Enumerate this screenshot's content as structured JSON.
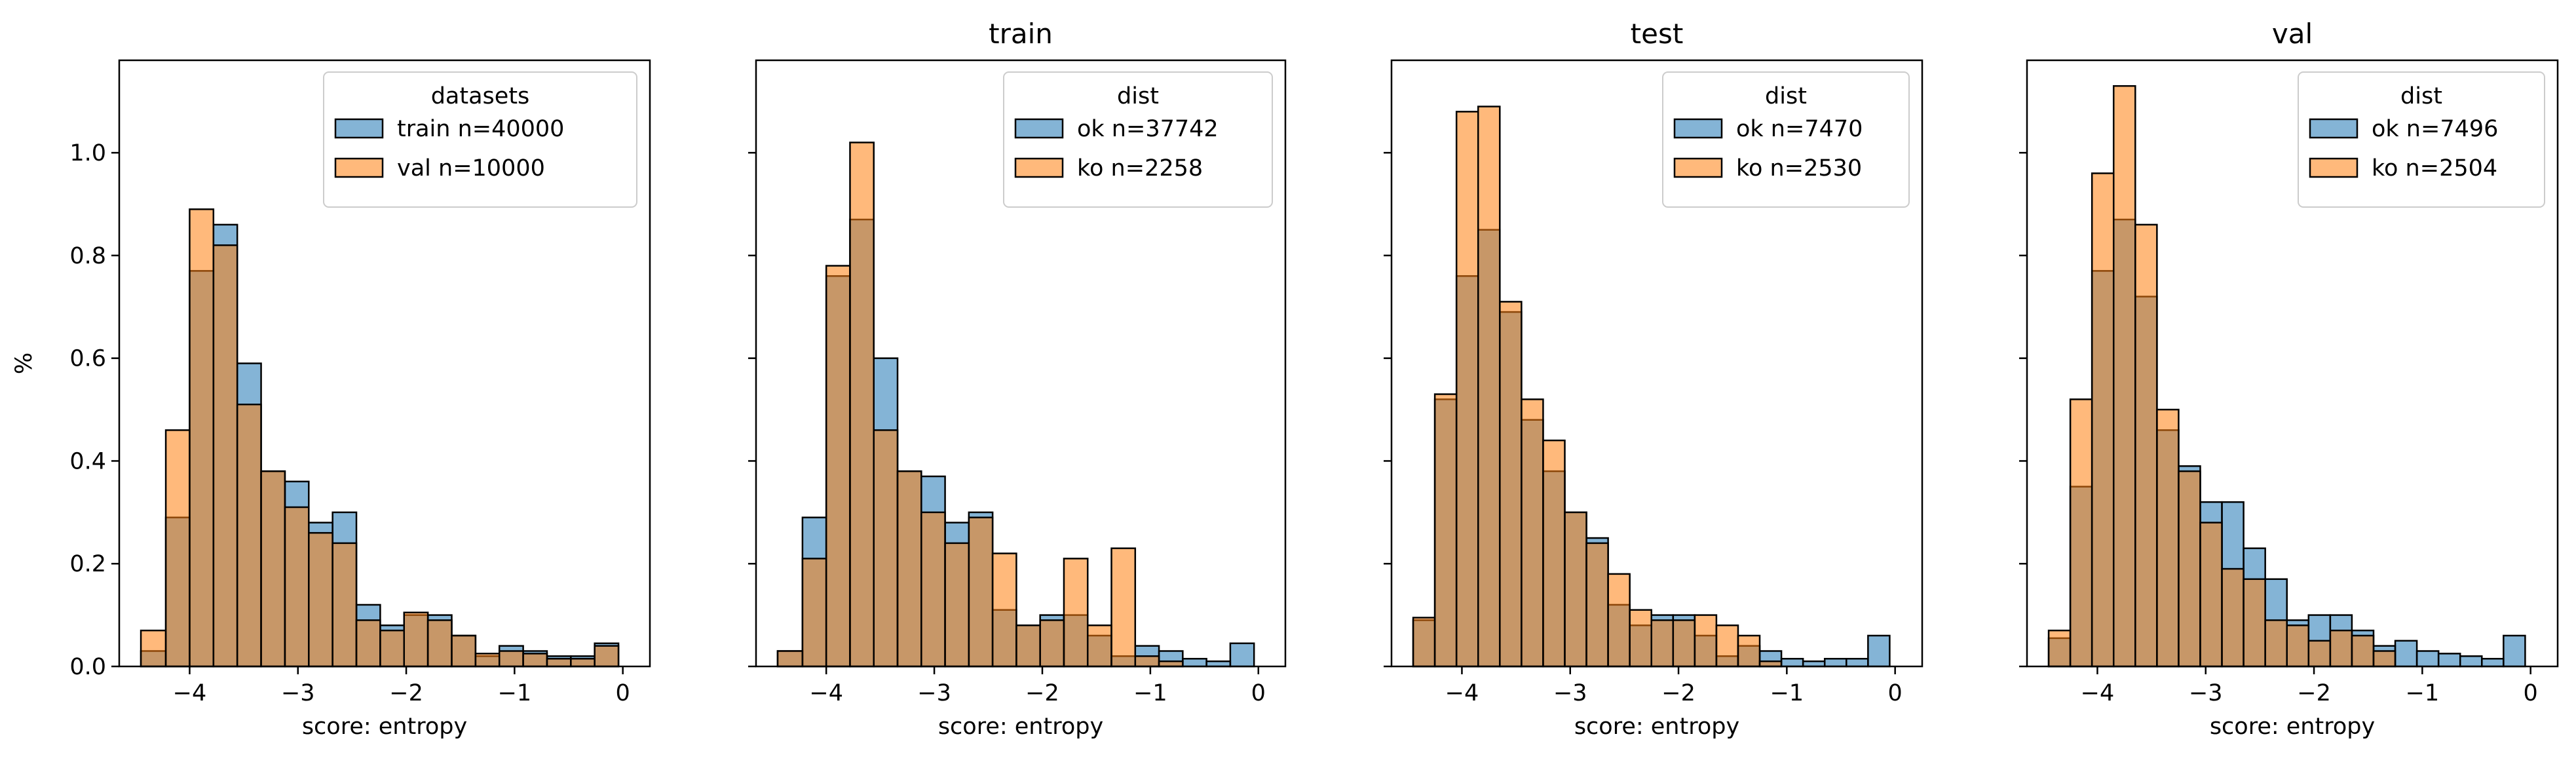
{
  "chart_data": [
    {
      "type": "bar",
      "title": "",
      "xlabel": "score: entropy",
      "ylabel": "%",
      "xlim": [
        -4.65,
        0.25
      ],
      "ylim": [
        0,
        1.18
      ],
      "xticks": [
        -4,
        -3,
        -2,
        -1,
        0
      ],
      "xtick_labels": [
        "−4",
        "−3",
        "−2",
        "−1",
        "0"
      ],
      "yticks": [
        0,
        0.2,
        0.4,
        0.6,
        0.8,
        1.0
      ],
      "ytick_labels": [
        "0.0",
        "0.2",
        "0.4",
        "0.6",
        "0.8",
        "1.0"
      ],
      "show_yticklabels": true,
      "legend": {
        "title": "datasets",
        "position": "top-right"
      },
      "series": [
        {
          "name": "train n=40000",
          "color": "#1f77b4",
          "bins": [
            [
              -4.45,
              -4.22,
              0.03
            ],
            [
              -4.22,
              -4.0,
              0.29
            ],
            [
              -4.0,
              -3.78,
              0.77
            ],
            [
              -3.78,
              -3.56,
              0.86
            ],
            [
              -3.56,
              -3.34,
              0.59
            ],
            [
              -3.34,
              -3.12,
              0.38
            ],
            [
              -3.12,
              -2.9,
              0.36
            ],
            [
              -2.9,
              -2.68,
              0.28
            ],
            [
              -2.68,
              -2.46,
              0.3
            ],
            [
              -2.46,
              -2.24,
              0.12
            ],
            [
              -2.24,
              -2.02,
              0.08
            ],
            [
              -2.02,
              -1.8,
              0.1
            ],
            [
              -1.8,
              -1.58,
              0.1
            ],
            [
              -1.58,
              -1.36,
              0.06
            ],
            [
              -1.36,
              -1.14,
              0.02
            ],
            [
              -1.14,
              -0.92,
              0.04
            ],
            [
              -0.92,
              -0.7,
              0.03
            ],
            [
              -0.7,
              -0.48,
              0.02
            ],
            [
              -0.48,
              -0.26,
              0.02
            ],
            [
              -0.26,
              -0.04,
              0.045
            ]
          ]
        },
        {
          "name": "val n=10000",
          "color": "#ff7f0e",
          "bins": [
            [
              -4.45,
              -4.22,
              0.07
            ],
            [
              -4.22,
              -4.0,
              0.46
            ],
            [
              -4.0,
              -3.78,
              0.89
            ],
            [
              -3.78,
              -3.56,
              0.82
            ],
            [
              -3.56,
              -3.34,
              0.51
            ],
            [
              -3.34,
              -3.12,
              0.38
            ],
            [
              -3.12,
              -2.9,
              0.31
            ],
            [
              -2.9,
              -2.68,
              0.26
            ],
            [
              -2.68,
              -2.46,
              0.24
            ],
            [
              -2.46,
              -2.24,
              0.09
            ],
            [
              -2.24,
              -2.02,
              0.07
            ],
            [
              -2.02,
              -1.8,
              0.105
            ],
            [
              -1.8,
              -1.58,
              0.09
            ],
            [
              -1.58,
              -1.36,
              0.06
            ],
            [
              -1.36,
              -1.14,
              0.025
            ],
            [
              -1.14,
              -0.92,
              0.03
            ],
            [
              -0.92,
              -0.7,
              0.025
            ],
            [
              -0.7,
              -0.48,
              0.015
            ],
            [
              -0.48,
              -0.26,
              0.015
            ],
            [
              -0.26,
              -0.04,
              0.04
            ]
          ]
        }
      ]
    },
    {
      "type": "bar",
      "title": "train",
      "xlabel": "score: entropy",
      "ylabel": "",
      "xlim": [
        -4.65,
        0.25
      ],
      "ylim": [
        0,
        1.18
      ],
      "xticks": [
        -4,
        -3,
        -2,
        -1,
        0
      ],
      "xtick_labels": [
        "−4",
        "−3",
        "−2",
        "−1",
        "0"
      ],
      "yticks": [
        0,
        0.2,
        0.4,
        0.6,
        0.8,
        1.0
      ],
      "ytick_labels": [
        "0.0",
        "0.2",
        "0.4",
        "0.6",
        "0.8",
        "1.0"
      ],
      "show_yticklabels": false,
      "legend": {
        "title": "dist",
        "position": "top-right"
      },
      "series": [
        {
          "name": "ok n=37742",
          "color": "#1f77b4",
          "bins": [
            [
              -4.45,
              -4.22,
              0.03
            ],
            [
              -4.22,
              -4.0,
              0.29
            ],
            [
              -4.0,
              -3.78,
              0.76
            ],
            [
              -3.78,
              -3.56,
              0.87
            ],
            [
              -3.56,
              -3.34,
              0.6
            ],
            [
              -3.34,
              -3.12,
              0.38
            ],
            [
              -3.12,
              -2.9,
              0.37
            ],
            [
              -2.9,
              -2.68,
              0.28
            ],
            [
              -2.68,
              -2.46,
              0.3
            ],
            [
              -2.46,
              -2.24,
              0.11
            ],
            [
              -2.24,
              -2.02,
              0.08
            ],
            [
              -2.02,
              -1.8,
              0.1
            ],
            [
              -1.8,
              -1.58,
              0.1
            ],
            [
              -1.58,
              -1.36,
              0.06
            ],
            [
              -1.36,
              -1.14,
              0.02
            ],
            [
              -1.14,
              -0.92,
              0.04
            ],
            [
              -0.92,
              -0.7,
              0.03
            ],
            [
              -0.7,
              -0.48,
              0.015
            ],
            [
              -0.48,
              -0.26,
              0.01
            ],
            [
              -0.26,
              -0.04,
              0.045
            ]
          ]
        },
        {
          "name": "ko n=2258",
          "color": "#ff7f0e",
          "bins": [
            [
              -4.45,
              -4.22,
              0.03
            ],
            [
              -4.22,
              -4.0,
              0.21
            ],
            [
              -4.0,
              -3.78,
              0.78
            ],
            [
              -3.78,
              -3.56,
              1.02
            ],
            [
              -3.56,
              -3.34,
              0.46
            ],
            [
              -3.34,
              -3.12,
              0.38
            ],
            [
              -3.12,
              -2.9,
              0.3
            ],
            [
              -2.9,
              -2.68,
              0.24
            ],
            [
              -2.68,
              -2.46,
              0.29
            ],
            [
              -2.46,
              -2.24,
              0.22
            ],
            [
              -2.24,
              -2.02,
              0.08
            ],
            [
              -2.02,
              -1.8,
              0.09
            ],
            [
              -1.8,
              -1.58,
              0.21
            ],
            [
              -1.58,
              -1.36,
              0.08
            ],
            [
              -1.36,
              -1.14,
              0.23
            ],
            [
              -1.14,
              -0.92,
              0.02
            ],
            [
              -0.92,
              -0.7,
              0.01
            ],
            [
              -0.7,
              -0.48,
              0
            ],
            [
              -0.48,
              -0.26,
              0
            ],
            [
              -0.26,
              -0.04,
              0
            ]
          ]
        }
      ]
    },
    {
      "type": "bar",
      "title": "test",
      "xlabel": "score: entropy",
      "ylabel": "",
      "xlim": [
        -4.65,
        0.25
      ],
      "ylim": [
        0,
        1.18
      ],
      "xticks": [
        -4,
        -3,
        -2,
        -1,
        0
      ],
      "xtick_labels": [
        "−4",
        "−3",
        "−2",
        "−1",
        "0"
      ],
      "yticks": [
        0,
        0.2,
        0.4,
        0.6,
        0.8,
        1.0
      ],
      "ytick_labels": [
        "0.0",
        "0.2",
        "0.4",
        "0.6",
        "0.8",
        "1.0"
      ],
      "show_yticklabels": false,
      "legend": {
        "title": "dist",
        "position": "top-right"
      },
      "series": [
        {
          "name": "ok n=7470",
          "color": "#1f77b4",
          "bins": [
            [
              -4.45,
              -4.25,
              0.09
            ],
            [
              -4.25,
              -4.05,
              0.52
            ],
            [
              -4.05,
              -3.85,
              0.76
            ],
            [
              -3.85,
              -3.65,
              0.85
            ],
            [
              -3.65,
              -3.45,
              0.69
            ],
            [
              -3.45,
              -3.25,
              0.48
            ],
            [
              -3.25,
              -3.05,
              0.38
            ],
            [
              -3.05,
              -2.85,
              0.3
            ],
            [
              -2.85,
              -2.65,
              0.25
            ],
            [
              -2.65,
              -2.45,
              0.12
            ],
            [
              -2.45,
              -2.25,
              0.08
            ],
            [
              -2.25,
              -2.05,
              0.1
            ],
            [
              -2.05,
              -1.85,
              0.1
            ],
            [
              -1.85,
              -1.65,
              0.06
            ],
            [
              -1.65,
              -1.45,
              0.02
            ],
            [
              -1.45,
              -1.25,
              0.04
            ],
            [
              -1.25,
              -1.05,
              0.03
            ],
            [
              -1.05,
              -0.85,
              0.015
            ],
            [
              -0.85,
              -0.65,
              0.01
            ],
            [
              -0.65,
              -0.45,
              0.015
            ],
            [
              -0.45,
              -0.25,
              0.015
            ],
            [
              -0.25,
              -0.05,
              0.06
            ]
          ]
        },
        {
          "name": "ko n=2530",
          "color": "#ff7f0e",
          "bins": [
            [
              -4.45,
              -4.25,
              0.095
            ],
            [
              -4.25,
              -4.05,
              0.53
            ],
            [
              -4.05,
              -3.85,
              1.08
            ],
            [
              -3.85,
              -3.65,
              1.09
            ],
            [
              -3.65,
              -3.45,
              0.71
            ],
            [
              -3.45,
              -3.25,
              0.52
            ],
            [
              -3.25,
              -3.05,
              0.44
            ],
            [
              -3.05,
              -2.85,
              0.3
            ],
            [
              -2.85,
              -2.65,
              0.24
            ],
            [
              -2.65,
              -2.45,
              0.18
            ],
            [
              -2.45,
              -2.25,
              0.11
            ],
            [
              -2.25,
              -2.05,
              0.09
            ],
            [
              -2.05,
              -1.85,
              0.09
            ],
            [
              -1.85,
              -1.65,
              0.1
            ],
            [
              -1.65,
              -1.45,
              0.08
            ],
            [
              -1.45,
              -1.25,
              0.06
            ],
            [
              -1.25,
              -1.05,
              0.01
            ],
            [
              -1.05,
              -0.85,
              0
            ],
            [
              -0.85,
              -0.65,
              0
            ],
            [
              -0.65,
              -0.45,
              0
            ],
            [
              -0.45,
              -0.25,
              0
            ],
            [
              -0.25,
              -0.05,
              0
            ]
          ]
        }
      ]
    },
    {
      "type": "bar",
      "title": "val",
      "xlabel": "score: entropy",
      "ylabel": "",
      "xlim": [
        -4.65,
        0.25
      ],
      "ylim": [
        0,
        1.18
      ],
      "xticks": [
        -4,
        -3,
        -2,
        -1,
        0
      ],
      "xtick_labels": [
        "−4",
        "−3",
        "−2",
        "−1",
        "0"
      ],
      "yticks": [
        0,
        0.2,
        0.4,
        0.6,
        0.8,
        1.0
      ],
      "ytick_labels": [
        "0.0",
        "0.2",
        "0.4",
        "0.6",
        "0.8",
        "1.0"
      ],
      "show_yticklabels": false,
      "legend": {
        "title": "dist",
        "position": "top-right"
      },
      "series": [
        {
          "name": "ok n=7496",
          "color": "#1f77b4",
          "bins": [
            [
              -4.45,
              -4.25,
              0.055
            ],
            [
              -4.25,
              -4.05,
              0.35
            ],
            [
              -4.05,
              -3.85,
              0.77
            ],
            [
              -3.85,
              -3.65,
              0.87
            ],
            [
              -3.65,
              -3.45,
              0.72
            ],
            [
              -3.45,
              -3.25,
              0.46
            ],
            [
              -3.25,
              -3.05,
              0.39
            ],
            [
              -3.05,
              -2.85,
              0.32
            ],
            [
              -2.85,
              -2.65,
              0.32
            ],
            [
              -2.65,
              -2.45,
              0.23
            ],
            [
              -2.45,
              -2.25,
              0.17
            ],
            [
              -2.25,
              -2.05,
              0.09
            ],
            [
              -2.05,
              -1.85,
              0.1
            ],
            [
              -1.85,
              -1.65,
              0.1
            ],
            [
              -1.65,
              -1.45,
              0.07
            ],
            [
              -1.45,
              -1.25,
              0.04
            ],
            [
              -1.25,
              -1.05,
              0.05
            ],
            [
              -1.05,
              -0.85,
              0.03
            ],
            [
              -0.85,
              -0.65,
              0.025
            ],
            [
              -0.65,
              -0.45,
              0.02
            ],
            [
              -0.45,
              -0.25,
              0.015
            ],
            [
              -0.25,
              -0.05,
              0.06
            ]
          ]
        },
        {
          "name": "ko n=2504",
          "color": "#ff7f0e",
          "bins": [
            [
              -4.45,
              -4.25,
              0.07
            ],
            [
              -4.25,
              -4.05,
              0.52
            ],
            [
              -4.05,
              -3.85,
              0.96
            ],
            [
              -3.85,
              -3.65,
              1.13
            ],
            [
              -3.65,
              -3.45,
              0.86
            ],
            [
              -3.45,
              -3.25,
              0.5
            ],
            [
              -3.25,
              -3.05,
              0.38
            ],
            [
              -3.05,
              -2.85,
              0.28
            ],
            [
              -2.85,
              -2.65,
              0.19
            ],
            [
              -2.65,
              -2.45,
              0.17
            ],
            [
              -2.45,
              -2.25,
              0.09
            ],
            [
              -2.25,
              -2.05,
              0.08
            ],
            [
              -2.05,
              -1.85,
              0.05
            ],
            [
              -1.85,
              -1.65,
              0.07
            ],
            [
              -1.65,
              -1.45,
              0.06
            ],
            [
              -1.45,
              -1.25,
              0.03
            ],
            [
              -1.25,
              -1.05,
              0
            ],
            [
              -1.05,
              -0.85,
              0
            ],
            [
              -0.85,
              -0.65,
              0
            ],
            [
              -0.65,
              -0.45,
              0
            ],
            [
              -0.45,
              -0.25,
              0
            ],
            [
              -0.25,
              -0.05,
              0
            ]
          ]
        }
      ]
    }
  ]
}
